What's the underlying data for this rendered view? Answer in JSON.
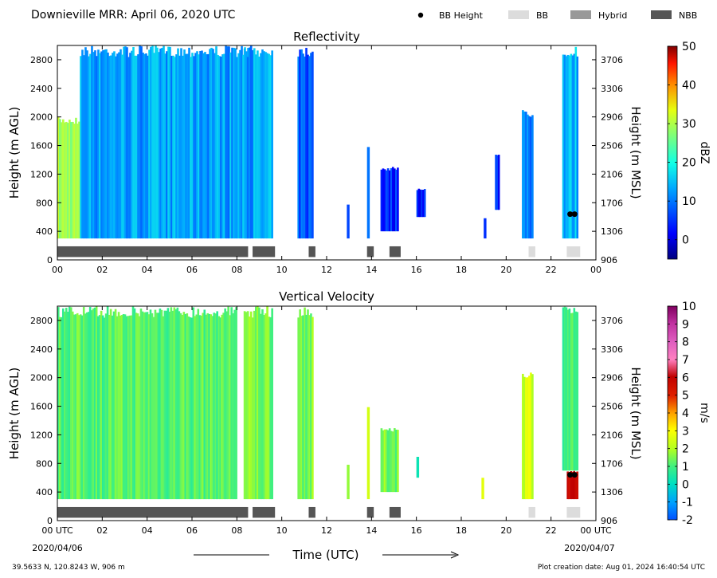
{
  "header": {
    "title": "Downieville MRR:  April 06, 2020 UTC",
    "legend": [
      {
        "label": "BB Height",
        "kind": "dot",
        "color": "#000000"
      },
      {
        "label": "BB",
        "kind": "box",
        "color": "#dcdcdc"
      },
      {
        "label": "Hybrid",
        "kind": "box",
        "color": "#999999"
      },
      {
        "label": "NBB",
        "kind": "box",
        "color": "#555555"
      }
    ]
  },
  "footer": {
    "location": "39.5633 N, 120.8243 W, 906 m",
    "created": "Plot creation date: Aug 01, 2024 16:40:54 UTC",
    "xlabel": "Time (UTC)",
    "start_date": "2020/04/06",
    "end_date": "2020/04/07"
  },
  "chart_data": [
    {
      "type": "heatmap",
      "title": "Reflectivity",
      "ylabel": "Height (m AGL)",
      "ylabel_right": "Height (m MSL)",
      "xlim": [
        0,
        24
      ],
      "ylim": [
        0,
        3000
      ],
      "xticks": [
        "00",
        "02",
        "04",
        "06",
        "08",
        "10",
        "12",
        "14",
        "16",
        "18",
        "20",
        "22",
        "00"
      ],
      "yticks": [
        0,
        400,
        800,
        1200,
        1600,
        2000,
        2400,
        2800
      ],
      "yticks_right": [
        906,
        1306,
        1706,
        2106,
        2506,
        2906,
        3306,
        3706
      ],
      "colorbar": {
        "label": "dBZ",
        "min": -5,
        "max": 50,
        "ticks": [
          0,
          10,
          20,
          30,
          40,
          50
        ]
      },
      "echoes": [
        {
          "t0": 0.0,
          "t1": 1.0,
          "h0": 300,
          "h1": 2000,
          "dbz": 22
        },
        {
          "t0": 1.0,
          "t1": 8.6,
          "h0": 300,
          "h1": 3000,
          "dbz": 8
        },
        {
          "t0": 8.3,
          "t1": 9.6,
          "h0": 300,
          "h1": 3000,
          "dbz": 8
        },
        {
          "t0": 10.7,
          "t1": 11.4,
          "h0": 300,
          "h1": 3000,
          "dbz": 4
        },
        {
          "t0": 12.9,
          "t1": 13.0,
          "h0": 300,
          "h1": 800,
          "dbz": 3
        },
        {
          "t0": 13.8,
          "t1": 13.9,
          "h0": 300,
          "h1": 1650,
          "dbz": 7
        },
        {
          "t0": 14.4,
          "t1": 15.2,
          "h0": 400,
          "h1": 1300,
          "dbz": 2
        },
        {
          "t0": 16.0,
          "t1": 16.4,
          "h0": 600,
          "h1": 1000,
          "dbz": 2
        },
        {
          "t0": 19.0,
          "t1": 19.1,
          "h0": 300,
          "h1": 600,
          "dbz": 2
        },
        {
          "t0": 19.5,
          "t1": 19.7,
          "h0": 700,
          "h1": 1500,
          "dbz": 2
        },
        {
          "t0": 20.7,
          "t1": 21.2,
          "h0": 300,
          "h1": 2100,
          "dbz": 7
        },
        {
          "t0": 22.5,
          "t1": 23.2,
          "h0": 300,
          "h1": 3000,
          "dbz": 9
        }
      ],
      "bb_heights": [
        {
          "time": 22.85,
          "height": 640
        },
        {
          "time": 23.05,
          "height": 640
        }
      ],
      "bb_type_bars": [
        {
          "t0": 0.0,
          "t1": 8.5,
          "type": "NBB"
        },
        {
          "t0": 8.7,
          "t1": 9.7,
          "type": "NBB"
        },
        {
          "t0": 11.2,
          "t1": 11.5,
          "type": "NBB"
        },
        {
          "t0": 13.8,
          "t1": 14.1,
          "type": "NBB"
        },
        {
          "t0": 14.8,
          "t1": 15.3,
          "type": "NBB"
        },
        {
          "t0": 21.0,
          "t1": 21.3,
          "type": "BB"
        },
        {
          "t0": 22.7,
          "t1": 23.3,
          "type": "BB"
        }
      ]
    },
    {
      "type": "heatmap",
      "title": "Vertical Velocity",
      "ylabel": "Height (m AGL)",
      "ylabel_right": "Height (m MSL)",
      "xlabel": "Time (UTC)",
      "xlim": [
        0,
        24
      ],
      "ylim": [
        0,
        3000
      ],
      "xticks": [
        "00 UTC",
        "02",
        "04",
        "06",
        "08",
        "10",
        "12",
        "14",
        "16",
        "18",
        "20",
        "22",
        "00 UTC"
      ],
      "yticks": [
        0,
        400,
        800,
        1200,
        1600,
        2000,
        2400,
        2800
      ],
      "yticks_right": [
        906,
        1306,
        1706,
        2106,
        2506,
        2906,
        3306,
        3706
      ],
      "colorbar": {
        "label": "m/s",
        "min": -2,
        "max": 10,
        "ticks": [
          -2,
          -1,
          0,
          1,
          2,
          3,
          4,
          5,
          6,
          7,
          8,
          9,
          10
        ]
      },
      "echoes": [
        {
          "t0": 0.0,
          "t1": 8.0,
          "h0": 300,
          "h1": 3000,
          "w": 1.2
        },
        {
          "t0": 8.3,
          "t1": 9.6,
          "h0": 300,
          "h1": 3000,
          "w": 1.5
        },
        {
          "t0": 10.7,
          "t1": 11.4,
          "h0": 300,
          "h1": 3000,
          "w": 1.5
        },
        {
          "t0": 12.9,
          "t1": 13.0,
          "h0": 300,
          "h1": 800,
          "w": 1.5
        },
        {
          "t0": 13.8,
          "t1": 13.9,
          "h0": 300,
          "h1": 1600,
          "w": 2.0
        },
        {
          "t0": 14.4,
          "t1": 15.2,
          "h0": 400,
          "h1": 1300,
          "w": 1.5
        },
        {
          "t0": 16.0,
          "t1": 16.1,
          "h0": 600,
          "h1": 900,
          "w": 0.5
        },
        {
          "t0": 18.9,
          "t1": 19.0,
          "h0": 300,
          "h1": 600,
          "w": 2.5
        },
        {
          "t0": 20.7,
          "t1": 21.2,
          "h0": 300,
          "h1": 2100,
          "w": 2.5
        },
        {
          "t0": 22.5,
          "t1": 23.2,
          "h0": 700,
          "h1": 3000,
          "w": 1.0
        },
        {
          "t0": 22.7,
          "t1": 23.2,
          "h0": 300,
          "h1": 700,
          "w": 5.5
        }
      ],
      "bb_heights": [
        {
          "time": 22.85,
          "height": 640
        },
        {
          "time": 23.05,
          "height": 640
        }
      ],
      "bb_type_bars": [
        {
          "t0": 0.0,
          "t1": 8.5,
          "type": "NBB"
        },
        {
          "t0": 8.7,
          "t1": 9.7,
          "type": "NBB"
        },
        {
          "t0": 11.2,
          "t1": 11.5,
          "type": "NBB"
        },
        {
          "t0": 13.8,
          "t1": 14.1,
          "type": "NBB"
        },
        {
          "t0": 14.8,
          "t1": 15.3,
          "type": "NBB"
        },
        {
          "t0": 21.0,
          "t1": 21.3,
          "type": "BB"
        },
        {
          "t0": 22.7,
          "t1": 23.3,
          "type": "BB"
        }
      ]
    }
  ]
}
